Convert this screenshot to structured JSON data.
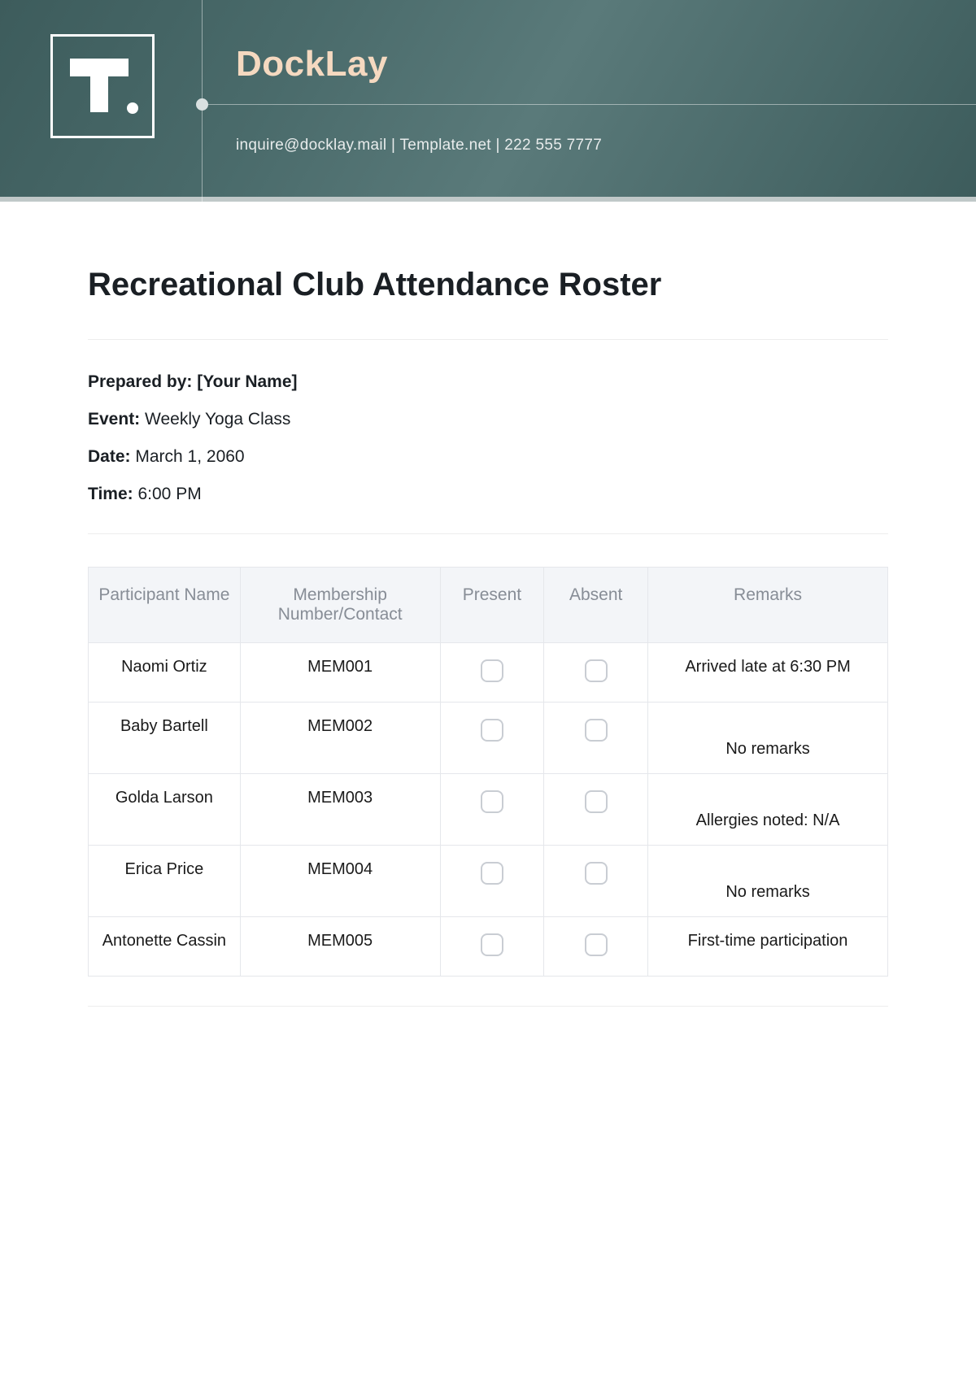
{
  "header": {
    "brand": "DockLay",
    "contact": "inquire@docklay.mail  |  Template.net  |  222 555 7777",
    "bg_gradient": [
      "#3d5c5c",
      "#4a6b6b",
      "#5a7a7a",
      "#3d5c5c"
    ],
    "brand_color": "#f5d9c0",
    "line_color": "rgba(255,255,255,0.45)"
  },
  "doc": {
    "title": "Recreational Club Attendance Roster",
    "prepared_label": "Prepared by:",
    "prepared_value": "[Your Name]",
    "event_label": "Event:",
    "event_value": "Weekly Yoga Class",
    "date_label": "Date:",
    "date_value": "March 1, 2060",
    "time_label": "Time:",
    "time_value": "6:00 PM"
  },
  "table": {
    "columns": [
      "Participant Name",
      "Membership Number/Contact",
      "Present",
      "Absent",
      "Remarks"
    ],
    "header_bg": "#f3f5f8",
    "header_color": "#878d96",
    "border_color": "#e5e7eb",
    "checkbox_border": "#c9cdd3",
    "rows": [
      {
        "name": "Naomi Ortiz",
        "member": "MEM001",
        "remarks": "Arrived late at 6:30 PM",
        "pad": false
      },
      {
        "name": "Baby Bartell",
        "member": "MEM002",
        "remarks": "No remarks",
        "pad": true
      },
      {
        "name": "Golda Larson",
        "member": "MEM003",
        "remarks": "Allergies noted: N/A",
        "pad": true
      },
      {
        "name": "Erica Price",
        "member": "MEM004",
        "remarks": "No remarks",
        "pad": true
      },
      {
        "name": "Antonette Cassin",
        "member": "MEM005",
        "remarks": "First-time participation",
        "pad": false
      }
    ]
  }
}
